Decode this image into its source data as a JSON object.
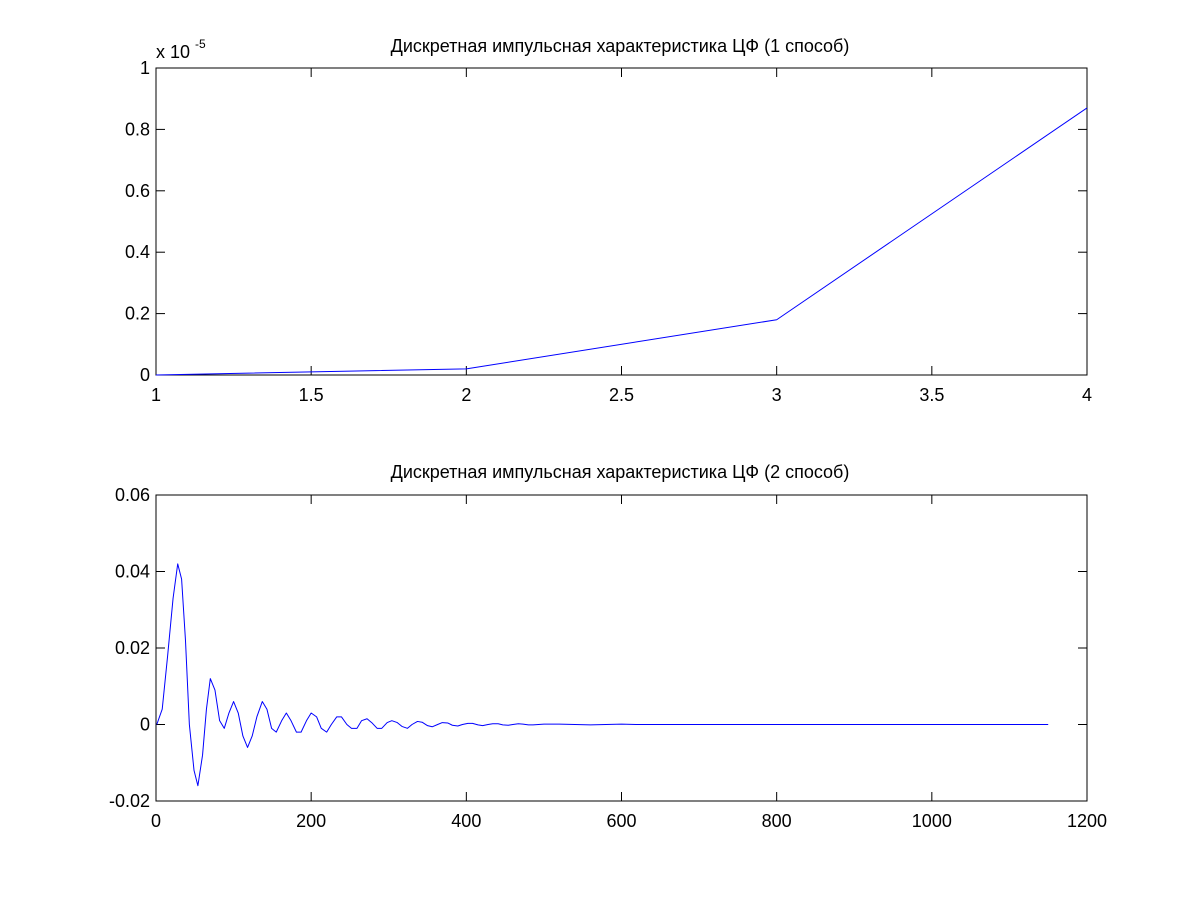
{
  "chart_data": [
    {
      "type": "line",
      "title": "Дискретная импульсная характеристика ЦФ (1 способ)",
      "xlabel": "",
      "ylabel": "",
      "exponent_label": {
        "base": "x 10",
        "power": "-5"
      },
      "xlim": [
        1,
        4
      ],
      "ylim": [
        0,
        1
      ],
      "xticks": [
        1,
        1.5,
        2,
        2.5,
        3,
        3.5,
        4
      ],
      "xtick_labels": [
        "1",
        "1.5",
        "2",
        "2.5",
        "3",
        "3.5",
        "4"
      ],
      "yticks": [
        0,
        0.2,
        0.4,
        0.6,
        0.8,
        1
      ],
      "ytick_labels": [
        "0",
        "0.2",
        "0.4",
        "0.6",
        "0.8",
        "1"
      ],
      "grid": false,
      "color": "#0000ff",
      "x": [
        1,
        2,
        3,
        4
      ],
      "y": [
        0.0,
        0.02,
        0.18,
        0.87
      ]
    },
    {
      "type": "line",
      "title": "Дискретная импульсная характеристика ЦФ (2 способ)",
      "xlabel": "",
      "ylabel": "",
      "xlim": [
        0,
        1200
      ],
      "ylim": [
        -0.02,
        0.06
      ],
      "xticks": [
        0,
        200,
        400,
        600,
        800,
        1000,
        1200
      ],
      "xtick_labels": [
        "0",
        "200",
        "400",
        "600",
        "800",
        "1000",
        "1200"
      ],
      "yticks": [
        -0.02,
        0,
        0.02,
        0.04,
        0.06
      ],
      "ytick_labels": [
        "-0.02",
        "0",
        "0.02",
        "0.04",
        "0.06"
      ],
      "grid": false,
      "color": "#0000ff",
      "x_start": 1,
      "x_end": 1150,
      "x": [
        1,
        8,
        15,
        22,
        28,
        33,
        38,
        43,
        49,
        54,
        60,
        65,
        70,
        76,
        82,
        88,
        94,
        100,
        106,
        112,
        118,
        124,
        130,
        137,
        143,
        149,
        155,
        162,
        168,
        174,
        181,
        187,
        194,
        200,
        207,
        213,
        220,
        226,
        233,
        239,
        246,
        252,
        259,
        265,
        272,
        278,
        285,
        291,
        298,
        304,
        311,
        317,
        324,
        330,
        337,
        343,
        350,
        356,
        363,
        369,
        376,
        382,
        389,
        395,
        402,
        408,
        415,
        421,
        428,
        434,
        441,
        447,
        454,
        460,
        467,
        473,
        480,
        486,
        493,
        500,
        520,
        540,
        560,
        580,
        600,
        620,
        650,
        700,
        800,
        900,
        1000,
        1100,
        1150
      ],
      "y": [
        0.0,
        0.004,
        0.018,
        0.033,
        0.042,
        0.038,
        0.022,
        0.0,
        -0.012,
        -0.016,
        -0.008,
        0.004,
        0.012,
        0.009,
        0.001,
        -0.001,
        0.003,
        0.006,
        0.003,
        -0.003,
        -0.006,
        -0.003,
        0.002,
        0.006,
        0.004,
        -0.001,
        -0.002,
        0.001,
        0.003,
        0.001,
        -0.002,
        -0.002,
        0.001,
        0.003,
        0.002,
        -0.001,
        -0.002,
        0.0,
        0.002,
        0.002,
        0.0,
        -0.001,
        -0.001,
        0.001,
        0.0015,
        0.0005,
        -0.001,
        -0.001,
        0.0005,
        0.001,
        0.0005,
        -0.0005,
        -0.001,
        0.0,
        0.0008,
        0.0006,
        -0.0003,
        -0.0006,
        0.0,
        0.0005,
        0.0004,
        -0.0002,
        -0.0004,
        0.0,
        0.0003,
        0.0003,
        -0.0001,
        -0.0003,
        0.0,
        0.0002,
        0.0002,
        -0.0001,
        -0.0002,
        0.0,
        0.0002,
        0.0001,
        -0.0001,
        -0.0001,
        0.0,
        0.0001,
        0.0001,
        0.0,
        -0.0001,
        0.0,
        0.0001,
        0.0,
        0.0,
        0.0,
        0.0,
        0.0,
        0.0,
        0.0,
        0.0
      ]
    }
  ]
}
